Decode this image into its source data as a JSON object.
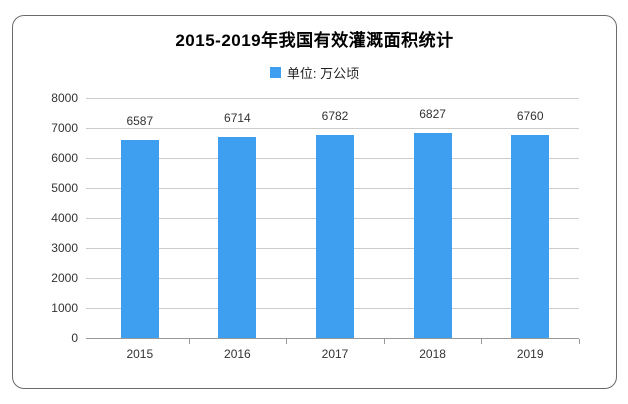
{
  "card": {
    "title": "2015-2019年我国有效灌溉面积统计"
  },
  "legend": {
    "label": "单位: 万公顷"
  },
  "colors": {
    "bar": "#3E9EF0",
    "grid": "#cccccc",
    "axis": "#999999",
    "text": "#333333",
    "border": "#6b6b6b"
  },
  "chart_data": {
    "type": "bar",
    "title": "2015-2019年我国有效灌溉面积统计",
    "legend_entries": [
      "单位: 万公顷"
    ],
    "legend_position": "top",
    "categories": [
      "2015",
      "2016",
      "2017",
      "2018",
      "2019"
    ],
    "values": [
      6587,
      6714,
      6782,
      6827,
      6760
    ],
    "value_labels_shown": true,
    "xlabel": "",
    "ylabel": "",
    "unit": "万公顷",
    "ylim": [
      0,
      8000
    ],
    "y_ticks": [
      0,
      1000,
      2000,
      3000,
      4000,
      5000,
      6000,
      7000,
      8000
    ],
    "grid": true
  }
}
